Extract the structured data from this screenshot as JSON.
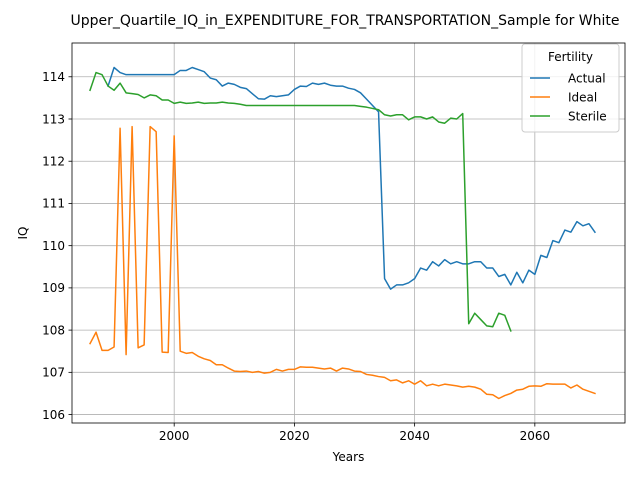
{
  "chart_data": {
    "type": "line",
    "title": "Upper_Quartile_IQ_in_EXPENDITURE_FOR_TRANSPORTATION_Sample for White",
    "xlabel": "Years",
    "ylabel": "IQ",
    "xlim": [
      1983,
      2075
    ],
    "ylim": [
      105.8,
      114.8
    ],
    "xticks": [
      2000,
      2020,
      2040,
      2060
    ],
    "yticks": [
      106,
      107,
      108,
      109,
      110,
      111,
      112,
      113,
      114
    ],
    "grid": true,
    "legend": {
      "title": "Fertility",
      "placement": "upper right"
    },
    "series": [
      {
        "name": "Actual",
        "color": "#1f77b4",
        "x": [
          1989,
          1990,
          1991,
          1992,
          1993,
          1994,
          1995,
          1996,
          1997,
          1998,
          1999,
          2000,
          2001,
          2002,
          2003,
          2004,
          2005,
          2006,
          2007,
          2008,
          2009,
          2010,
          2011,
          2012,
          2013,
          2014,
          2015,
          2016,
          2017,
          2018,
          2019,
          2020,
          2021,
          2022,
          2023,
          2024,
          2025,
          2026,
          2027,
          2028,
          2029,
          2030,
          2031,
          2032,
          2033,
          2034,
          2035,
          2036,
          2037,
          2038,
          2039,
          2040,
          2041,
          2042,
          2043,
          2044,
          2045,
          2046,
          2047,
          2048,
          2049,
          2050,
          2051,
          2052,
          2053,
          2054,
          2055,
          2056,
          2057,
          2058,
          2059,
          2060,
          2061,
          2062,
          2063,
          2064,
          2065,
          2066,
          2067,
          2068,
          2069,
          2070
        ],
        "values": [
          113.78,
          114.22,
          114.1,
          114.05,
          114.05,
          114.05,
          114.05,
          114.05,
          114.05,
          114.05,
          114.05,
          114.05,
          114.15,
          114.15,
          114.22,
          114.17,
          114.12,
          113.97,
          113.93,
          113.78,
          113.85,
          113.82,
          113.75,
          113.72,
          113.6,
          113.48,
          113.47,
          113.55,
          113.53,
          113.55,
          113.57,
          113.7,
          113.78,
          113.77,
          113.85,
          113.82,
          113.85,
          113.8,
          113.78,
          113.78,
          113.73,
          113.7,
          113.62,
          113.47,
          113.32,
          113.17,
          109.22,
          108.97,
          109.07,
          109.07,
          109.12,
          109.22,
          109.47,
          109.42,
          109.62,
          109.52,
          109.67,
          109.57,
          109.62,
          109.57,
          109.57,
          109.62,
          109.62,
          109.47,
          109.47,
          109.27,
          109.32,
          109.07,
          109.37,
          109.12,
          109.42,
          109.32,
          109.77,
          109.72,
          110.12,
          110.07,
          110.37,
          110.32,
          110.57,
          110.47,
          110.52,
          110.32
        ]
      },
      {
        "name": "Ideal",
        "color": "#ff7f0e",
        "x": [
          1986,
          1987,
          1988,
          1989,
          1990,
          1991,
          1992,
          1993,
          1994,
          1995,
          1996,
          1997,
          1998,
          1999,
          2000,
          2001,
          2002,
          2003,
          2004,
          2005,
          2006,
          2007,
          2008,
          2009,
          2010,
          2011,
          2012,
          2013,
          2014,
          2015,
          2016,
          2017,
          2018,
          2019,
          2020,
          2021,
          2022,
          2023,
          2024,
          2025,
          2026,
          2027,
          2028,
          2029,
          2030,
          2031,
          2032,
          2033,
          2034,
          2035,
          2036,
          2037,
          2038,
          2039,
          2040,
          2041,
          2042,
          2043,
          2044,
          2045,
          2046,
          2047,
          2048,
          2049,
          2050,
          2051,
          2052,
          2053,
          2054,
          2055,
          2056,
          2057,
          2058,
          2059,
          2060,
          2061,
          2062,
          2063,
          2064,
          2065,
          2066,
          2067,
          2068,
          2069,
          2070
        ],
        "values": [
          107.68,
          107.95,
          107.52,
          107.52,
          107.6,
          112.78,
          107.42,
          112.82,
          107.58,
          107.65,
          112.82,
          112.7,
          107.48,
          107.47,
          112.6,
          107.5,
          107.45,
          107.47,
          107.38,
          107.32,
          107.28,
          107.18,
          107.18,
          107.1,
          107.03,
          107.02,
          107.03,
          107.0,
          107.02,
          106.98,
          107.0,
          107.07,
          107.03,
          107.07,
          107.07,
          107.13,
          107.12,
          107.12,
          107.1,
          107.08,
          107.1,
          107.03,
          107.1,
          107.08,
          107.03,
          107.02,
          106.95,
          106.93,
          106.9,
          106.88,
          106.8,
          106.82,
          106.75,
          106.8,
          106.72,
          106.8,
          106.68,
          106.72,
          106.68,
          106.72,
          106.7,
          106.68,
          106.65,
          106.67,
          106.65,
          106.6,
          106.48,
          106.47,
          106.38,
          106.45,
          106.5,
          106.58,
          106.6,
          106.67,
          106.68,
          106.67,
          106.73,
          106.72,
          106.72,
          106.72,
          106.63,
          106.7,
          106.6,
          106.55,
          106.5
        ]
      },
      {
        "name": "Sterile",
        "color": "#2ca02c",
        "x": [
          1986,
          1987,
          1988,
          1989,
          1990,
          1991,
          1992,
          1993,
          1994,
          1995,
          1996,
          1997,
          1998,
          1999,
          2000,
          2001,
          2002,
          2003,
          2004,
          2005,
          2006,
          2007,
          2008,
          2009,
          2010,
          2011,
          2012,
          2013,
          2014,
          2015,
          2016,
          2017,
          2018,
          2019,
          2020,
          2021,
          2022,
          2023,
          2024,
          2025,
          2026,
          2027,
          2028,
          2029,
          2030,
          2031,
          2032,
          2033,
          2034,
          2035,
          2036,
          2037,
          2038,
          2039,
          2040,
          2041,
          2042,
          2043,
          2044,
          2045,
          2046,
          2047,
          2048,
          2049,
          2050,
          2051,
          2052,
          2053,
          2054,
          2055,
          2056
        ],
        "values": [
          113.68,
          114.1,
          114.05,
          113.78,
          113.68,
          113.85,
          113.62,
          113.6,
          113.58,
          113.5,
          113.57,
          113.55,
          113.45,
          113.45,
          113.37,
          113.4,
          113.37,
          113.38,
          113.4,
          113.37,
          113.38,
          113.38,
          113.4,
          113.38,
          113.37,
          113.35,
          113.32,
          113.32,
          113.32,
          113.32,
          113.32,
          113.32,
          113.32,
          113.32,
          113.32,
          113.32,
          113.32,
          113.32,
          113.32,
          113.32,
          113.32,
          113.32,
          113.32,
          113.32,
          113.32,
          113.3,
          113.28,
          113.25,
          113.22,
          113.1,
          113.07,
          113.1,
          113.1,
          112.98,
          113.05,
          113.05,
          113.0,
          113.05,
          112.93,
          112.9,
          113.02,
          113.0,
          113.13,
          108.15,
          108.4,
          108.25,
          108.1,
          108.08,
          108.4,
          108.35,
          107.98
        ]
      }
    ]
  }
}
